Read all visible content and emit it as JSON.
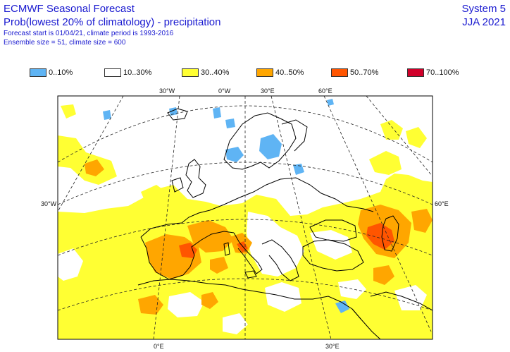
{
  "header": {
    "title": "ECMWF Seasonal Forecast",
    "subtitle": "Prob(lowest 20% of climatology) - precipitation",
    "line3": "Forecast start is 01/04/21, climate period is 1993-2016",
    "line4": "Ensemble size = 51, climate size = 600",
    "system": "System 5",
    "season": "JJA 2021"
  },
  "legend": [
    {
      "label": "0..10%",
      "color": "#5fb4f4"
    },
    {
      "label": "10..30%",
      "color": "#ffffff"
    },
    {
      "label": "30..40%",
      "color": "#ffff33"
    },
    {
      "label": "40..50%",
      "color": "#ffa600"
    },
    {
      "label": "50..70%",
      "color": "#ff5500"
    },
    {
      "label": "70..100%",
      "color": "#d0002a"
    }
  ],
  "axis_labels": {
    "top": [
      "30°W",
      "0°W",
      "30°E",
      "60°E"
    ],
    "bottom": [
      "0°E",
      "30°E"
    ],
    "left": "30°W",
    "right": "60°E"
  }
}
